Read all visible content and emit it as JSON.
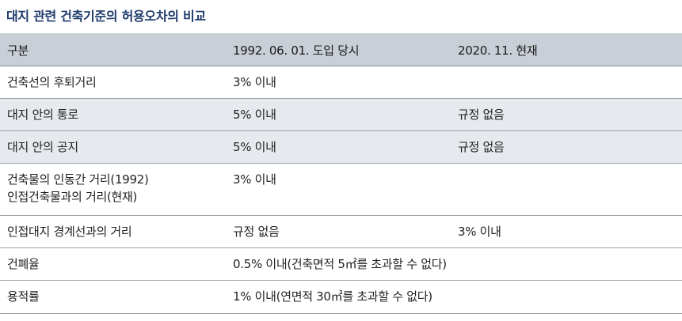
{
  "title": "대지 관련 건축기준의 허용오차의 비교",
  "table": {
    "headers": [
      "구분",
      "1992. 06. 01. 도입 당시",
      "2020. 11. 현재"
    ],
    "rows": [
      {
        "label": "건축선의 후퇴거리",
        "v1992": "3% 이내",
        "v2020": ""
      },
      {
        "label": "대지 안의 통로",
        "v1992": "5% 이내",
        "v2020": "규정 없음"
      },
      {
        "label": "대지 안의 공지",
        "v1992": "5% 이내",
        "v2020": "규정 없음"
      },
      {
        "label_line1": "건축물의 인동간 거리(1992)",
        "label_line2": "인접건축물과의 거리(현재)",
        "v1992": "3% 이내",
        "v2020": ""
      },
      {
        "label": "인접대지 경계선과의 거리",
        "v1992": "규정 없음",
        "v2020": "3% 이내"
      },
      {
        "label": "건폐율",
        "merged": "0.5% 이내(건축면적 5㎡를 초과할 수 없다)"
      },
      {
        "label": "용적률",
        "merged": "1% 이내(연면적 30㎡를 초과할 수 없다)"
      }
    ]
  },
  "colors": {
    "title": "#1f3a6b",
    "header_bg": "#c9cfd6",
    "shaded_bg": "#e6e9ed"
  }
}
